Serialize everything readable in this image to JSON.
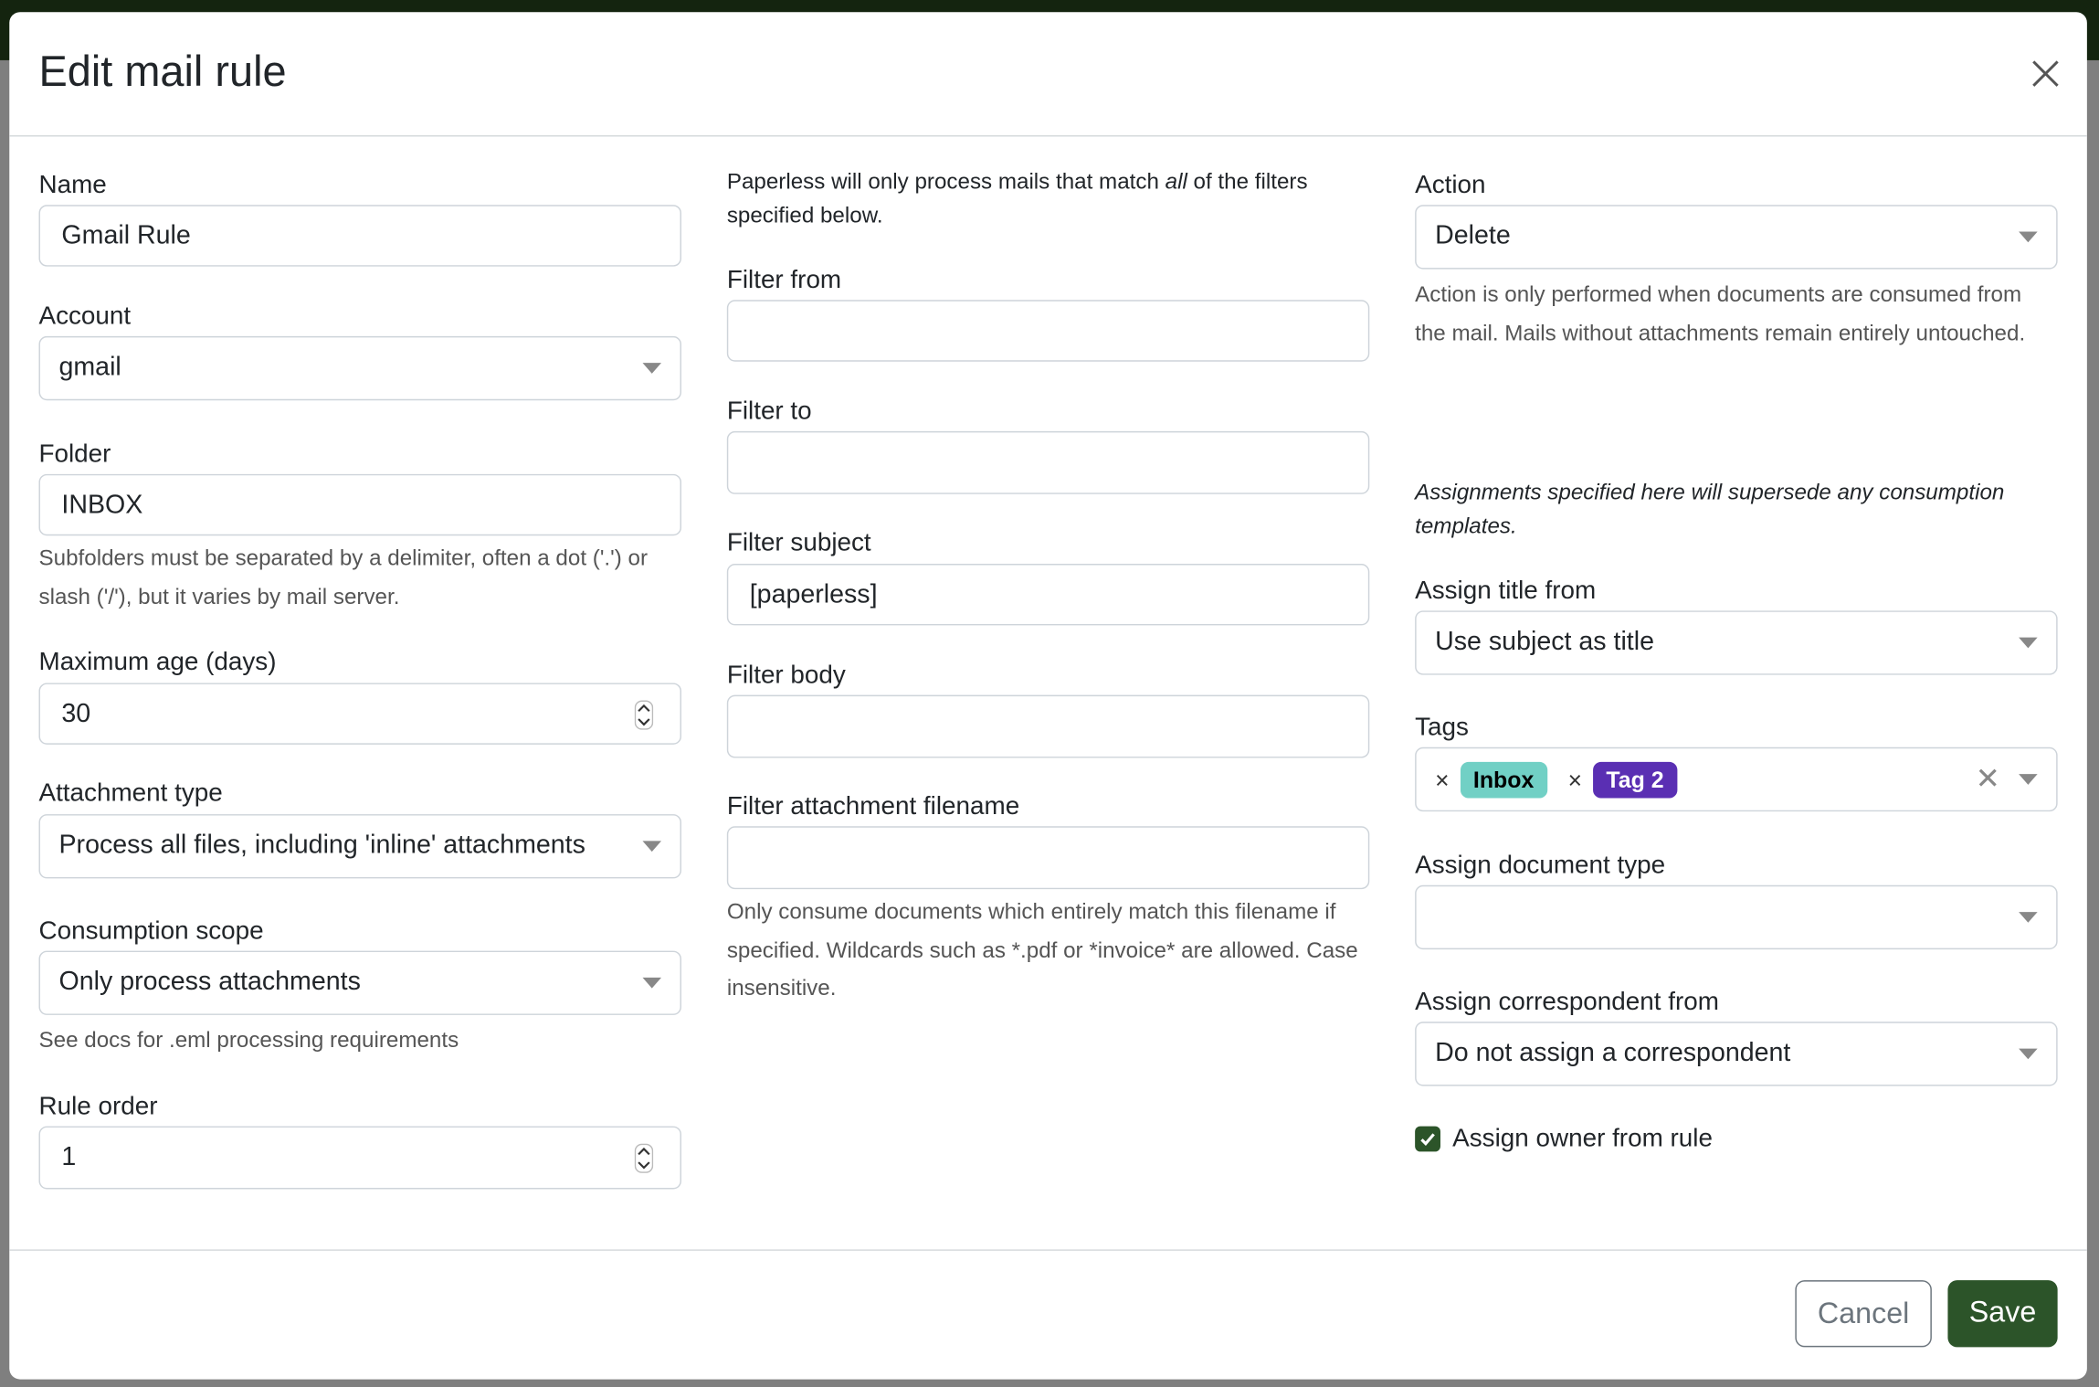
{
  "dialog": {
    "title": "Edit mail rule"
  },
  "col1": {
    "name": {
      "label": "Name",
      "value": "Gmail Rule"
    },
    "account": {
      "label": "Account",
      "value": "gmail"
    },
    "folder": {
      "label": "Folder",
      "value": "INBOX",
      "help": "Subfolders must be separated by a delimiter, often a dot ('.') or slash ('/'), but it varies by mail server."
    },
    "max_age": {
      "label": "Maximum age (days)",
      "value": "30"
    },
    "attachment_type": {
      "label": "Attachment type",
      "value": "Process all files, including 'inline' attachments"
    },
    "consumption_scope": {
      "label": "Consumption scope",
      "value": "Only process attachments",
      "help": "See docs for .eml processing requirements"
    },
    "rule_order": {
      "label": "Rule order",
      "value": "1"
    }
  },
  "col2": {
    "intro_pre": "Paperless will only process mails that match ",
    "intro_em": "all",
    "intro_post": " of the filters specified below.",
    "filter_from": {
      "label": "Filter from",
      "value": ""
    },
    "filter_to": {
      "label": "Filter to",
      "value": ""
    },
    "filter_subject": {
      "label": "Filter subject",
      "value": "[paperless]"
    },
    "filter_body": {
      "label": "Filter body",
      "value": ""
    },
    "filter_attachment": {
      "label": "Filter attachment filename",
      "value": "",
      "help": "Only consume documents which entirely match this filename if specified. Wildcards such as *.pdf or *invoice* are allowed. Case insensitive."
    }
  },
  "col3": {
    "action": {
      "label": "Action",
      "value": "Delete",
      "help": "Action is only performed when documents are consumed from the mail. Mails without attachments remain entirely untouched."
    },
    "assignments_note": "Assignments specified here will supersede any consumption templates.",
    "assign_title": {
      "label": "Assign title from",
      "value": "Use subject as title"
    },
    "tags": {
      "label": "Tags",
      "items": [
        {
          "name": "Inbox",
          "bg": "#71d0c5",
          "fg": "#000000"
        },
        {
          "name": "Tag 2",
          "bg": "#5a2fb3",
          "fg": "#ffffff"
        }
      ]
    },
    "doc_type": {
      "label": "Assign document type",
      "value": ""
    },
    "correspondent": {
      "label": "Assign correspondent from",
      "value": "Do not assign a correspondent"
    },
    "owner": {
      "label": "Assign owner from rule",
      "checked": true
    }
  },
  "footer": {
    "cancel": "Cancel",
    "save": "Save"
  },
  "colors": {
    "primary": "#2c5429",
    "backdrop": "#808080"
  }
}
